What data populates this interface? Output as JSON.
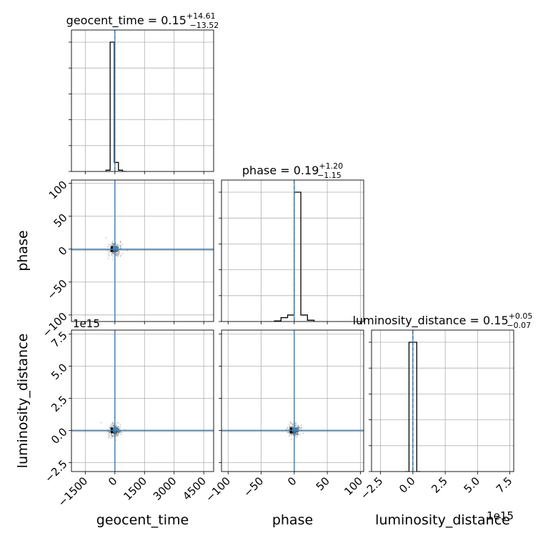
{
  "chart_data": {
    "type": "corner",
    "parameters": [
      "geocent_time",
      "phase",
      "luminosity_distance"
    ],
    "titles": [
      {
        "param": "geocent_time",
        "label": "geocent_time",
        "median": "0.15",
        "plus": "+14.61",
        "minus": "−13.52"
      },
      {
        "param": "phase",
        "label": "phase",
        "median": "0.19",
        "plus": "+1.20",
        "minus": "−1.15"
      },
      {
        "param": "luminosity_distance",
        "label": "luminosity_distance",
        "median": "0.15",
        "plus": "+0.05",
        "minus": "−0.07"
      }
    ],
    "axes": {
      "geocent_time": {
        "range": [
          -2200,
          5000
        ],
        "ticks": [
          -1500,
          0,
          1500,
          3000,
          4500
        ],
        "tick_labels": [
          "−1500",
          "0",
          "1500",
          "3000",
          "4500"
        ],
        "truth": 0,
        "median": 0
      },
      "phase": {
        "range": [
          -110,
          105
        ],
        "ticks": [
          -100,
          -50,
          0,
          50,
          100
        ],
        "tick_labels": [
          "−100",
          "−50",
          "0",
          "50",
          "100"
        ],
        "truth": 0,
        "median": 0
      },
      "luminosity_distance": {
        "range": [
          -3.2,
          7.8
        ],
        "ticks": [
          -2.5,
          0,
          2.5,
          5,
          7.5
        ],
        "tick_labels": [
          "−2.5",
          "0.0",
          "2.5",
          "5.0",
          "7.5"
        ],
        "offset_label": "1e15",
        "truth": 0,
        "median": 0
      }
    },
    "histograms": {
      "geocent_time": {
        "edges": [
          -450,
          -240,
          -30,
          180,
          390,
          600
        ],
        "counts": [
          0.01,
          1.0,
          0.07,
          0.01,
          0.0
        ]
      },
      "phase": {
        "edges": [
          -30,
          -20,
          -10,
          0,
          10,
          20,
          30
        ],
        "counts": [
          0.005,
          0.03,
          0.05,
          1.0,
          0.05,
          0.01
        ]
      },
      "luminosity_distance": {
        "edges": [
          -0.6,
          -0.3,
          0.0,
          0.3,
          0.6
        ],
        "counts": [
          0.0,
          1.0,
          1.0,
          0.0
        ]
      }
    },
    "truth_color": "#4682b4",
    "density_color": "#000000",
    "grid": true
  }
}
